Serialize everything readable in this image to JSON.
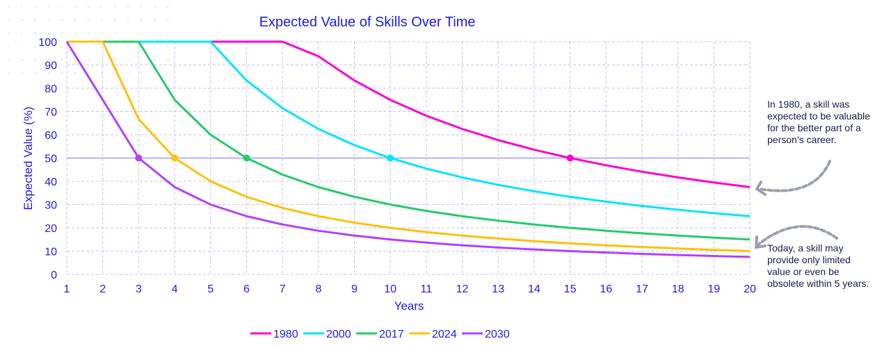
{
  "chart_data": {
    "type": "line",
    "title": "Expected Value of Skills Over Time",
    "xlabel": "Years",
    "ylabel": "Expected Value (%)",
    "xlim": [
      1,
      20
    ],
    "ylim": [
      0,
      100
    ],
    "x": [
      1,
      2,
      3,
      4,
      5,
      6,
      7,
      8,
      9,
      10,
      11,
      12,
      13,
      14,
      15,
      16,
      17,
      18,
      19,
      20
    ],
    "yticks": [
      0,
      10,
      20,
      30,
      40,
      50,
      60,
      70,
      80,
      90,
      100
    ],
    "grid": true,
    "legend": "bottom",
    "reference_line": 50,
    "series": [
      {
        "name": "1980",
        "color": "#ff00cc",
        "values": [
          100,
          100,
          100,
          100,
          100,
          100,
          100,
          93.75,
          83.33,
          75,
          68.18,
          62.5,
          57.69,
          53.57,
          50,
          46.88,
          44.12,
          41.67,
          39.47,
          37.5
        ],
        "marker_x": 15
      },
      {
        "name": "2000",
        "color": "#00e5ff",
        "values": [
          100,
          100,
          100,
          100,
          100,
          83.33,
          71.43,
          62.5,
          55.56,
          50,
          45.45,
          41.67,
          38.46,
          35.71,
          33.33,
          31.25,
          29.41,
          27.78,
          26.32,
          25
        ],
        "marker_x": 10
      },
      {
        "name": "2017",
        "color": "#22cc66",
        "values": [
          100,
          100,
          100,
          75,
          60,
          50,
          42.86,
          37.5,
          33.33,
          30,
          27.27,
          25,
          23.08,
          21.43,
          20,
          18.75,
          17.65,
          16.67,
          15.79,
          15
        ],
        "marker_x": 6
      },
      {
        "name": "2024",
        "color": "#ffc000",
        "values": [
          100,
          100,
          66.67,
          50,
          40,
          33.33,
          28.57,
          25,
          22.22,
          20,
          18.18,
          16.67,
          15.38,
          14.29,
          13.33,
          12.5,
          11.76,
          11.11,
          10.53,
          10
        ],
        "marker_x": 4
      },
      {
        "name": "2030",
        "color": "#b040ff",
        "values": [
          100,
          75,
          50,
          37.5,
          30,
          25,
          21.43,
          18.75,
          16.67,
          15,
          13.64,
          12.5,
          11.54,
          10.71,
          10,
          9.38,
          8.82,
          8.33,
          7.89,
          7.5
        ],
        "marker_x": 3
      }
    ],
    "annotations": [
      "In 1980, a skill was expected to be valuable for the better part of a person’s career.",
      "Today, a skill may provide only limited value or even be obsolete within 5 years."
    ]
  }
}
